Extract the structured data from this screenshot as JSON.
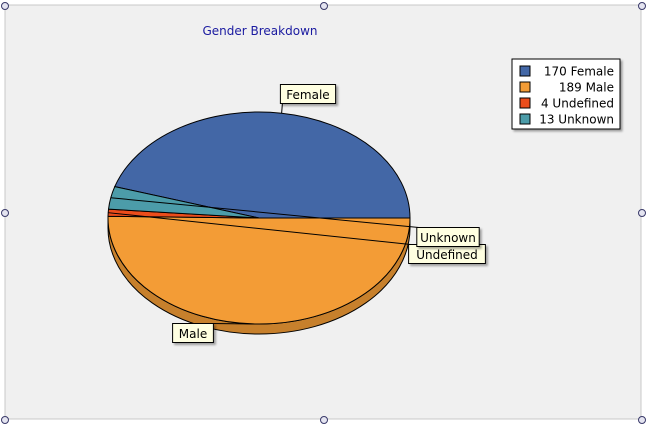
{
  "chart_data": {
    "type": "pie",
    "title": "Gender Breakdown",
    "legend_position": "top-right",
    "slices": [
      {
        "label": "Female",
        "value": 170,
        "legend": "170 Female",
        "color": "#4367A6"
      },
      {
        "label": "Male",
        "value": 189,
        "legend": "189 Male",
        "color": "#F39C36"
      },
      {
        "label": "Undefined",
        "value": 4,
        "legend": "4 Undefined",
        "color": "#EC4D1B"
      },
      {
        "label": "Unknown",
        "value": 13,
        "legend": "13 Unknown",
        "color": "#4C9CA9"
      }
    ]
  },
  "colors": {
    "title": "#1A1AA0",
    "plot_background": "#F0F0F0",
    "callout_background": "#FFFFE1",
    "selection_handle": "#3A3A6A"
  }
}
